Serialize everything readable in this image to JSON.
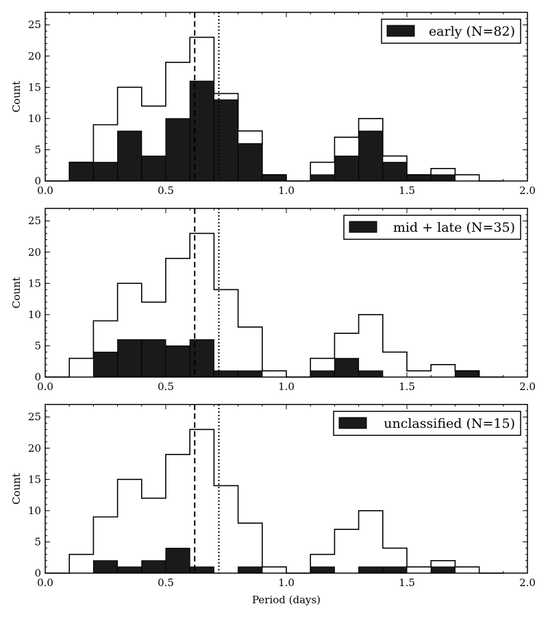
{
  "chart_data": {
    "type": "histogram",
    "xlabel": "Period (days)",
    "ylabel": "Count",
    "xlim": [
      0.0,
      2.0
    ],
    "ylim": [
      0,
      27
    ],
    "x_ticks": [
      0.0,
      0.5,
      1.0,
      1.5,
      2.0
    ],
    "x_tick_labels": [
      "0.0",
      "0.5",
      "1.0",
      "1.5",
      "2.0"
    ],
    "y_ticks": [
      0,
      5,
      10,
      15,
      20,
      25
    ],
    "y_tick_labels": [
      "0",
      "5",
      "10",
      "15",
      "20",
      "25"
    ],
    "bin_edges": [
      0.0,
      0.1,
      0.2,
      0.3,
      0.4,
      0.5,
      0.6,
      0.7,
      0.8,
      0.9,
      1.0,
      1.1,
      1.2,
      1.3,
      1.4,
      1.5,
      1.6,
      1.7,
      1.8,
      1.9
    ],
    "all_counts": [
      0,
      3,
      9,
      15,
      12,
      19,
      23,
      14,
      8,
      1,
      0,
      3,
      7,
      10,
      4,
      1,
      2,
      1,
      0
    ],
    "dashed_line_x": 0.62,
    "dotted_line_x": 0.72,
    "panels": [
      {
        "legend": "early (N=82)",
        "counts": [
          0,
          3,
          3,
          8,
          4,
          10,
          16,
          13,
          6,
          1,
          0,
          1,
          4,
          8,
          3,
          1,
          1,
          0,
          0
        ]
      },
      {
        "legend": "mid + late (N=35)",
        "counts": [
          0,
          0,
          4,
          6,
          6,
          5,
          6,
          1,
          1,
          0,
          0,
          1,
          3,
          1,
          0,
          0,
          0,
          1,
          0
        ]
      },
      {
        "legend": "unclassified (N=15)",
        "counts": [
          0,
          0,
          2,
          1,
          2,
          4,
          1,
          0,
          1,
          0,
          0,
          1,
          0,
          1,
          1,
          0,
          1,
          0,
          0
        ]
      }
    ],
    "colors": {
      "subset_fill": "#1a1a1a",
      "outline": "#000000",
      "background": "#ffffff"
    }
  }
}
